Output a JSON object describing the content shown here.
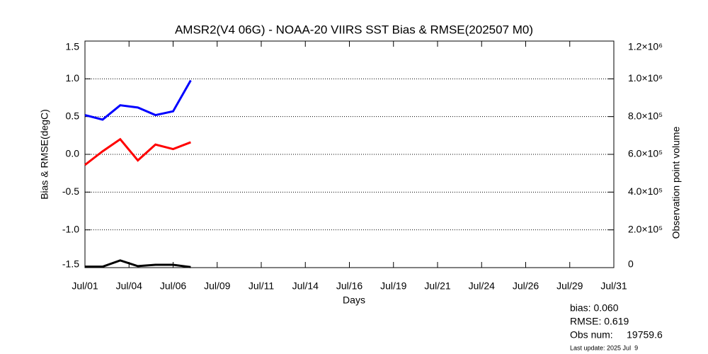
{
  "chart_data": {
    "type": "line",
    "title": "AMSR2(V4 06G) - NOAA-20 VIIRS SST Bias & RMSE(202507 M0)",
    "x_label": "Days",
    "y_label": "Bias & RMSE(degC)",
    "y2_label": "Observation point volume",
    "x": [
      1,
      2,
      3,
      4,
      5,
      6,
      7
    ],
    "xlim": [
      1,
      31
    ],
    "xticks": [
      {
        "value": 1,
        "label": "Jul/01"
      },
      {
        "value": 3.5,
        "label": "Jul/04"
      },
      {
        "value": 6,
        "label": "Jul/06"
      },
      {
        "value": 8.5,
        "label": "Jul/09"
      },
      {
        "value": 11,
        "label": "Jul/11"
      },
      {
        "value": 13.5,
        "label": "Jul/14"
      },
      {
        "value": 16,
        "label": "Jul/16"
      },
      {
        "value": 18.5,
        "label": "Jul/19"
      },
      {
        "value": 21,
        "label": "Jul/21"
      },
      {
        "value": 23.5,
        "label": "Jul/24"
      },
      {
        "value": 26,
        "label": "Jul/26"
      },
      {
        "value": 28.5,
        "label": "Jul/29"
      },
      {
        "value": 31,
        "label": "Jul/31"
      }
    ],
    "ylim": [
      -1.5,
      1.5
    ],
    "yticks": [
      -1.5,
      {
        "value": -1,
        "label": "-1.0"
      },
      -0.5,
      {
        "value": 0,
        "label": "0.0"
      },
      0.5,
      {
        "value": 1,
        "label": "1.0"
      },
      1.5
    ],
    "y2lim": [
      0,
      1200000
    ],
    "y2ticks": [
      0,
      {
        "value": 200000,
        "label": "2.0×10⁵"
      },
      {
        "value": 400000,
        "label": "4.0×10⁵"
      },
      {
        "value": 600000,
        "label": "6.0×10⁵"
      },
      {
        "value": 800000,
        "label": "8.0×10⁵"
      },
      {
        "value": 1000000,
        "label": "1.0×10⁶"
      },
      {
        "value": 1200000,
        "label": "1.2×10⁶"
      }
    ],
    "grid": true,
    "series": [
      {
        "color": "#ff0000",
        "values": [
          -0.14,
          0.04,
          0.2,
          -0.08,
          0.13,
          0.07,
          0.16
        ]
      },
      {
        "color": "#0000ff",
        "values": [
          0.52,
          0.46,
          0.65,
          0.62,
          0.52,
          0.57,
          0.98
        ]
      },
      {
        "color": "#000000",
        "axis": "y2",
        "values": [
          5000,
          5000,
          38000,
          8000,
          15000,
          15000,
          3000
        ]
      }
    ],
    "annotations": [
      {
        "text": "bias: 0.060",
        "color": "#ff0000"
      },
      {
        "text": "RMSE: 0.619",
        "color": "#0000ff"
      },
      {
        "text": "Obs num:     19759.6",
        "color": "#000000"
      },
      {
        "text": "Last update: 2025 Jul  9",
        "color": "#000000"
      }
    ]
  }
}
